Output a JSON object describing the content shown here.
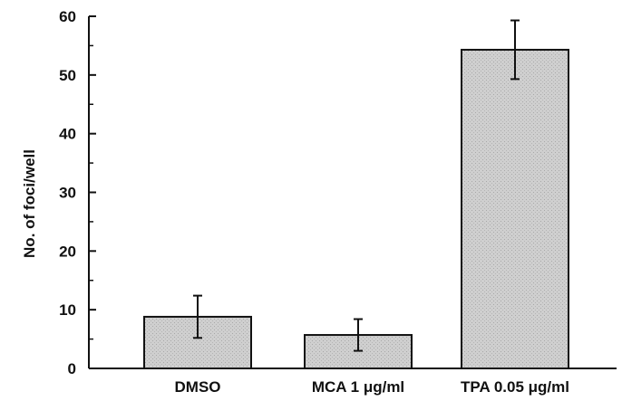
{
  "chart_data": {
    "type": "bar",
    "title": "",
    "xlabel": "",
    "ylabel": "No. of foci/well",
    "categories": [
      "DMSO",
      "MCA 1 μg/ml",
      "TPA 0.05 μg/ml"
    ],
    "values": [
      8.8,
      5.7,
      54.3
    ],
    "error": [
      3.6,
      2.7,
      5.0
    ],
    "ylim": [
      0,
      60
    ],
    "yticks": [
      0,
      10,
      20,
      30,
      40,
      50,
      60
    ],
    "bar_color": "#cfcfcf",
    "grid": false,
    "legend": "none"
  }
}
